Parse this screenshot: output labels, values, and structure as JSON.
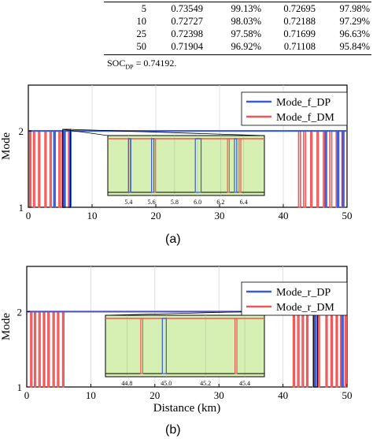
{
  "table": {
    "rows": [
      [
        "5",
        "0.73549",
        "99.13%",
        "0.72695",
        "97.98%"
      ],
      [
        "10",
        "0.72727",
        "98.03%",
        "0.72188",
        "97.29%"
      ],
      [
        "25",
        "0.72398",
        "97.58%",
        "0.71699",
        "96.63%"
      ],
      [
        "50",
        "0.71904",
        "96.92%",
        "0.71108",
        "95.84%"
      ]
    ],
    "note_prefix": "SOC",
    "note_sub": "DP",
    "note_suffix": " = 0.74192."
  },
  "chart_data": [
    {
      "type": "line",
      "panel_label": "(a)",
      "xlabel": "",
      "ylabel": "Mode",
      "xlim": [
        0,
        50
      ],
      "ylim": [
        1,
        2.6
      ],
      "x_ticks": [
        0,
        10,
        20,
        30,
        40,
        50
      ],
      "y_ticks": [
        1,
        2
      ],
      "grid": true,
      "legend_position": "top-right",
      "series": [
        {
          "name": "Mode_f_DP",
          "color": "#3a5bd6",
          "pulses": [
            [
              4.0,
              4.2
            ],
            [
              5.4,
              5.46
            ],
            [
              5.6,
              5.65
            ],
            [
              6.5,
              6.6
            ],
            [
              46.6,
              46.8
            ],
            [
              48.5,
              48.7
            ],
            [
              49.3,
              49.5
            ]
          ]
        },
        {
          "name": "Mode_f_DM",
          "color": "#ee5757",
          "pulses": [
            [
              0.2,
              0.4
            ],
            [
              0.8,
              1.0
            ],
            [
              1.6,
              1.8
            ],
            [
              2.6,
              2.8
            ],
            [
              3.4,
              3.6
            ],
            [
              4.0,
              4.2
            ],
            [
              4.8,
              5.0
            ],
            [
              5.3,
              5.5
            ],
            [
              6.3,
              6.6
            ],
            [
              42.4,
              42.7
            ],
            [
              43.2,
              43.5
            ],
            [
              44.3,
              44.5
            ],
            [
              45.3,
              45.5
            ],
            [
              46.3,
              46.5
            ],
            [
              47.3,
              47.6
            ],
            [
              48.3,
              48.6
            ],
            [
              49.2,
              49.5
            ]
          ]
        }
      ],
      "inset": {
        "xlim": [
          5.22,
          6.58
        ],
        "x_ticks": [
          "5.4",
          "5.6",
          "5.8",
          "6.0",
          "6.2",
          "6.4"
        ],
        "x_tick_values": [
          5.4,
          5.6,
          5.8,
          6.0,
          6.2,
          6.4
        ],
        "zoom_range": [
          5.4,
          6.6
        ],
        "pulses_dp": [
          [
            5.4,
            5.42
          ],
          [
            5.6,
            5.62
          ],
          [
            5.98,
            6.03
          ],
          [
            6.32,
            6.34
          ]
        ],
        "pulses_dm": [
          [
            5.4,
            5.415
          ],
          [
            5.62,
            5.635
          ],
          [
            6.26,
            6.275
          ],
          [
            6.36,
            6.375
          ]
        ]
      }
    },
    {
      "type": "line",
      "panel_label": "(b)",
      "xlabel": "Distance (km)",
      "ylabel": "Mode",
      "xlim": [
        0,
        50
      ],
      "ylim": [
        1,
        2.6
      ],
      "x_ticks": [
        0,
        10,
        20,
        30,
        40,
        50
      ],
      "y_ticks": [
        1,
        2
      ],
      "grid": true,
      "legend_position": "top-right",
      "series": [
        {
          "name": "Mode_r_DP",
          "color": "#3a5bd6",
          "pulses": [
            [
              45.0,
              45.2
            ],
            [
              49.2,
              49.4
            ]
          ]
        },
        {
          "name": "Mode_r_DM",
          "color": "#ee5757",
          "pulses": [
            [
              0.6,
              0.8
            ],
            [
              1.2,
              1.4
            ],
            [
              1.9,
              2.1
            ],
            [
              2.6,
              2.8
            ],
            [
              3.3,
              3.5
            ],
            [
              4.1,
              4.3
            ],
            [
              4.8,
              5.0
            ],
            [
              5.6,
              5.8
            ],
            [
              41.6,
              41.8
            ],
            [
              42.3,
              42.5
            ],
            [
              43.0,
              43.2
            ],
            [
              43.7,
              43.9
            ],
            [
              44.7,
              44.9
            ],
            [
              45.5,
              45.7
            ],
            [
              46.7,
              46.9
            ],
            [
              47.5,
              47.7
            ],
            [
              48.3,
              48.5
            ],
            [
              49.0,
              49.2
            ],
            [
              49.7,
              49.9
            ]
          ]
        }
      ],
      "inset": {
        "xlim": [
          44.69,
          45.5
        ],
        "x_ticks": [
          "44.8",
          "45.0",
          "45.2",
          "45.4"
        ],
        "x_tick_values": [
          44.8,
          45.0,
          45.2,
          45.4
        ],
        "zoom_range": [
          44.8,
          45.4
        ],
        "pulses_dp": [
          [
            44.98,
            45.0
          ]
        ],
        "pulses_dm": [
          [
            44.87,
            44.88
          ],
          [
            45.35,
            45.36
          ]
        ]
      }
    }
  ]
}
